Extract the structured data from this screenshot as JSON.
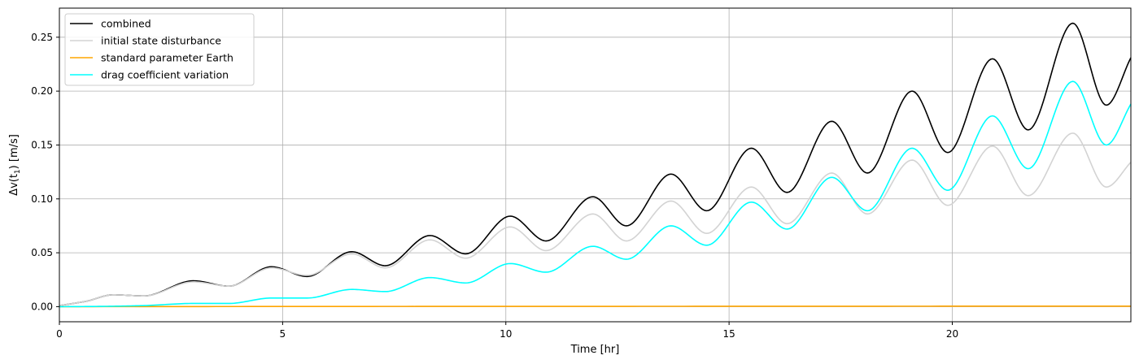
{
  "chart_data": {
    "type": "line",
    "xlabel": "Time [hr]",
    "ylabel_prefix": "Δv(t",
    "ylabel_sub": "1",
    "ylabel_suffix": ") [m/s]",
    "xlim": [
      0,
      24
    ],
    "ylim": [
      -0.014,
      0.277
    ],
    "xticks": [
      0,
      5,
      10,
      15,
      20
    ],
    "xtick_labels": [
      "0",
      "5",
      "10",
      "15",
      "20"
    ],
    "yticks": [
      0.0,
      0.05,
      0.1,
      0.15,
      0.2,
      0.25
    ],
    "ytick_labels": [
      "0.00",
      "0.05",
      "0.10",
      "0.15",
      "0.20",
      "0.25"
    ],
    "grid": true,
    "legend_position": "top-left",
    "colors": {
      "combined": "#000000",
      "initial": "#d3d3d3",
      "earth": "#ffa500",
      "drag": "#00ffff"
    },
    "series": [
      {
        "name": "combined",
        "color": "#000000",
        "x": [
          0,
          0.6,
          1.2,
          1.9,
          3.0,
          3.8,
          4.75,
          5.55,
          6.55,
          7.3,
          8.3,
          9.1,
          10.1,
          10.9,
          11.95,
          12.7,
          13.7,
          14.5,
          15.5,
          16.3,
          17.3,
          18.1,
          19.1,
          19.9,
          20.9,
          21.7,
          22.7,
          23.45,
          24.0
        ],
        "y": [
          0.001,
          0.005,
          0.011,
          0.01,
          0.024,
          0.019,
          0.037,
          0.028,
          0.051,
          0.038,
          0.066,
          0.049,
          0.084,
          0.061,
          0.102,
          0.075,
          0.123,
          0.089,
          0.147,
          0.106,
          0.172,
          0.124,
          0.2,
          0.143,
          0.23,
          0.164,
          0.263,
          0.187,
          0.231
        ]
      },
      {
        "name": "initial state disturbance",
        "color": "#d3d3d3",
        "x": [
          0,
          0.6,
          1.2,
          1.9,
          3.0,
          3.8,
          4.75,
          5.55,
          6.55,
          7.3,
          8.3,
          9.1,
          10.1,
          10.9,
          11.95,
          12.7,
          13.7,
          14.5,
          15.5,
          16.3,
          17.3,
          18.1,
          19.1,
          19.9,
          20.9,
          21.7,
          22.7,
          23.45,
          24.0
        ],
        "y": [
          0.001,
          0.005,
          0.011,
          0.01,
          0.023,
          0.019,
          0.036,
          0.029,
          0.049,
          0.036,
          0.062,
          0.045,
          0.074,
          0.052,
          0.086,
          0.061,
          0.098,
          0.068,
          0.111,
          0.077,
          0.124,
          0.086,
          0.136,
          0.094,
          0.149,
          0.103,
          0.161,
          0.111,
          0.134
        ]
      },
      {
        "name": "standard parameter Earth",
        "color": "#ffa500",
        "x": [
          0,
          6,
          12,
          18,
          24
        ],
        "y": [
          0.0,
          0.0002,
          0.0003,
          0.0004,
          0.0005
        ]
      },
      {
        "name": "drag coefficient variation",
        "color": "#00ffff",
        "x": [
          0,
          1.0,
          1.9,
          3.0,
          3.8,
          4.75,
          5.55,
          6.55,
          7.3,
          8.3,
          9.1,
          10.1,
          10.9,
          11.95,
          12.7,
          13.7,
          14.5,
          15.5,
          16.3,
          17.3,
          18.1,
          19.1,
          19.9,
          20.9,
          21.7,
          22.7,
          23.45,
          24.0
        ],
        "y": [
          0.0,
          0.0003,
          0.001,
          0.003,
          0.003,
          0.008,
          0.008,
          0.016,
          0.014,
          0.027,
          0.022,
          0.04,
          0.032,
          0.056,
          0.044,
          0.075,
          0.057,
          0.097,
          0.072,
          0.12,
          0.089,
          0.147,
          0.108,
          0.177,
          0.128,
          0.209,
          0.15,
          0.188
        ]
      }
    ]
  }
}
